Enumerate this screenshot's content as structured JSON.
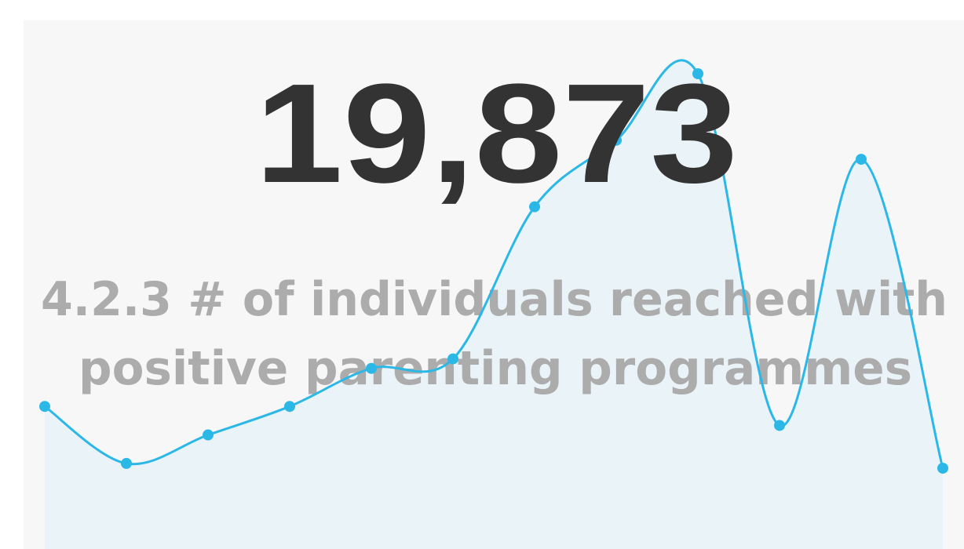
{
  "kpi": {
    "value": "19,873",
    "label_lines": [
      "4.2.3 # of individuals reached with",
      "positive parenting programmes"
    ]
  },
  "chart_data": {
    "type": "line",
    "values": [
      30,
      18,
      24,
      30,
      38,
      40,
      72,
      86,
      100,
      26,
      82,
      17
    ],
    "color": "#2bb8e6",
    "area_color": "#eaf3f7",
    "ylim": [
      0,
      100
    ]
  }
}
